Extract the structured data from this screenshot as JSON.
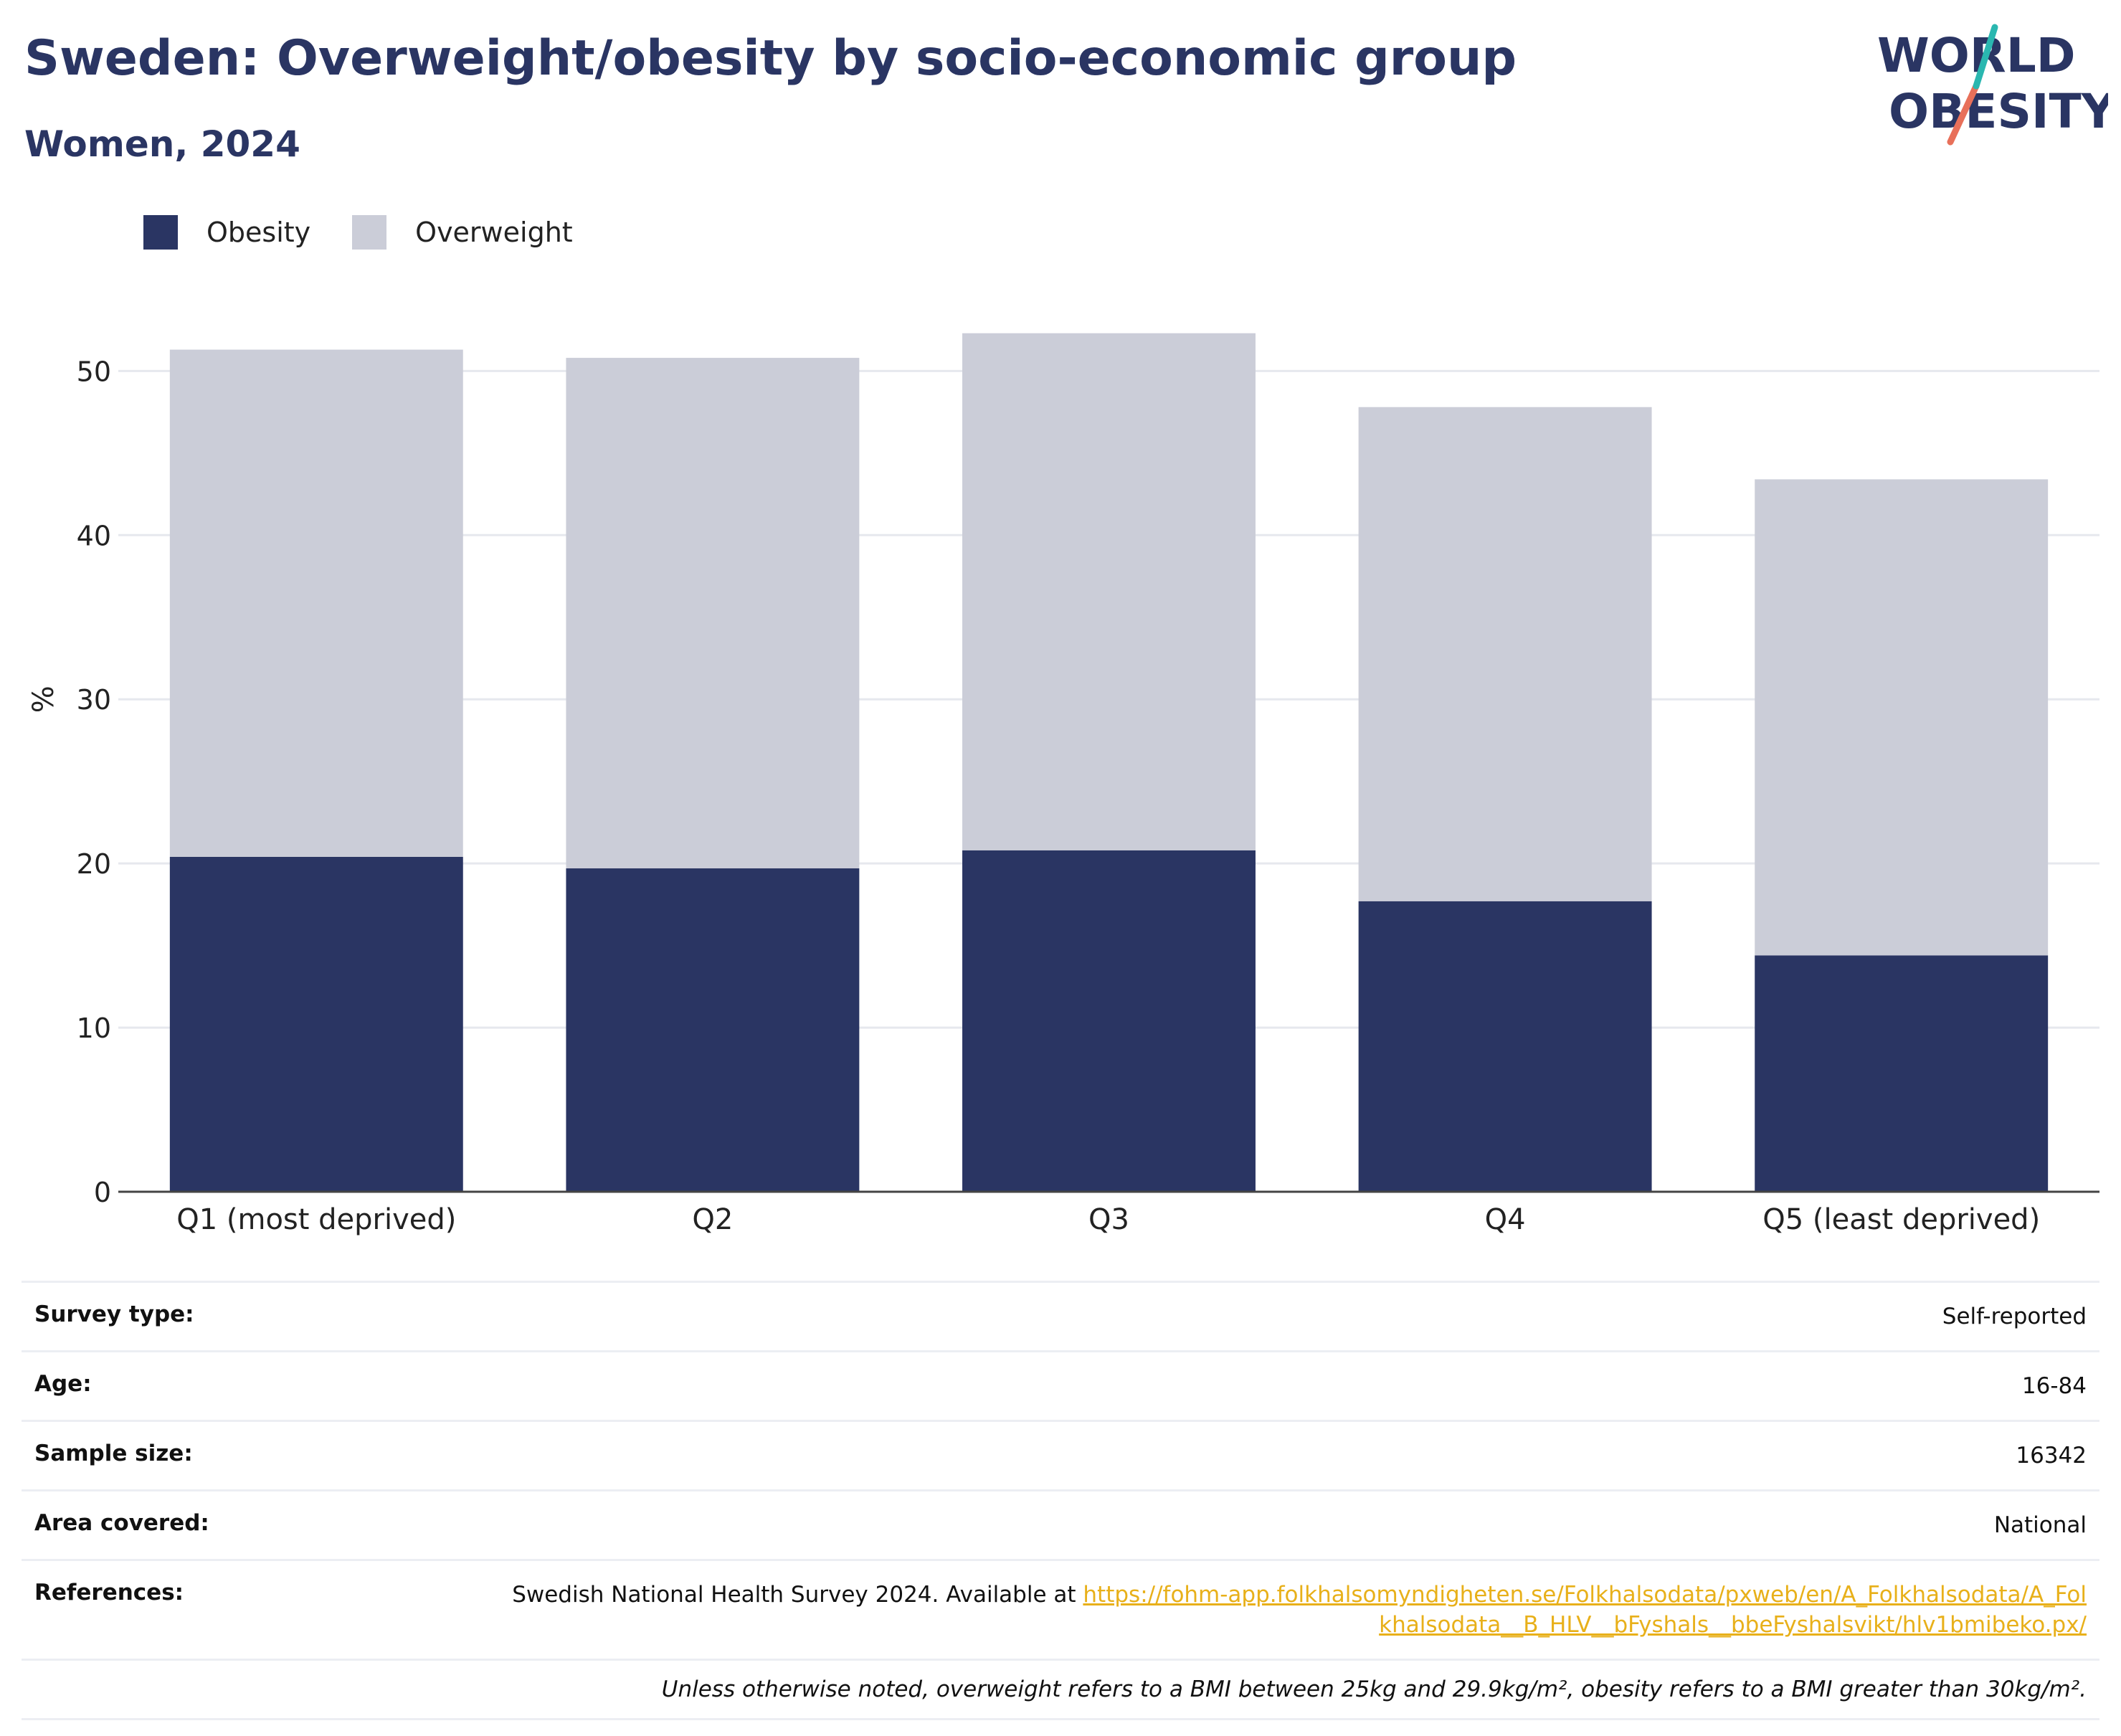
{
  "header": {
    "title": "Sweden: Overweight/obesity by socio-economic group",
    "subtitle": "Women, 2024"
  },
  "logo": {
    "line1": "WORLD",
    "line2": "OBESITY",
    "colors": {
      "text": "#2a3563",
      "teal": "#2ab7b0",
      "coral": "#e8705a"
    }
  },
  "colors": {
    "obesity": "#2a3563",
    "overweight": "#cbcdd8",
    "grid": "#e6e8ee",
    "axis": "#444444",
    "link": "#e8b01a"
  },
  "legend": [
    {
      "label": "Obesity",
      "color": "#2a3563"
    },
    {
      "label": "Overweight",
      "color": "#cbcdd8"
    }
  ],
  "chart_data": {
    "type": "bar",
    "stacked": true,
    "categories": [
      "Q1 (most deprived)",
      "Q2",
      "Q3",
      "Q4",
      "Q5 (least deprived)"
    ],
    "series": [
      {
        "name": "Obesity",
        "color": "#2a3563",
        "values": [
          20.4,
          19.7,
          20.8,
          17.7,
          14.4
        ]
      },
      {
        "name": "Overweight",
        "color": "#cbcdd8",
        "values": [
          30.9,
          31.1,
          31.5,
          30.1,
          29.0
        ]
      }
    ],
    "ylabel": "%",
    "xlabel": "",
    "ylim": [
      0,
      56
    ],
    "yticks": [
      0,
      10,
      20,
      30,
      40,
      50
    ],
    "grid": true,
    "legend_position": "top-left"
  },
  "info": {
    "rows": [
      {
        "label": "Survey type:",
        "value": "Self-reported"
      },
      {
        "label": "Age:",
        "value": "16-84"
      },
      {
        "label": "Sample size:",
        "value": "16342"
      },
      {
        "label": "Area covered:",
        "value": "National"
      }
    ],
    "references": {
      "label": "References:",
      "text": "Swedish National Health Survey 2024. Available at ",
      "link": "https://fohm-app.folkhalsomyndigheten.se/Folkhalsodata/pxweb/en/A_Folkhalsodata/A_Folkhalsodata__B_HLV__bFyshals__bbeFyshalsvikt/hlv1bmibeko.px/"
    },
    "note": "Unless otherwise noted, overweight refers to a BMI between 25kg and 29.9kg/m², obesity refers to a BMI greater than 30kg/m²."
  }
}
